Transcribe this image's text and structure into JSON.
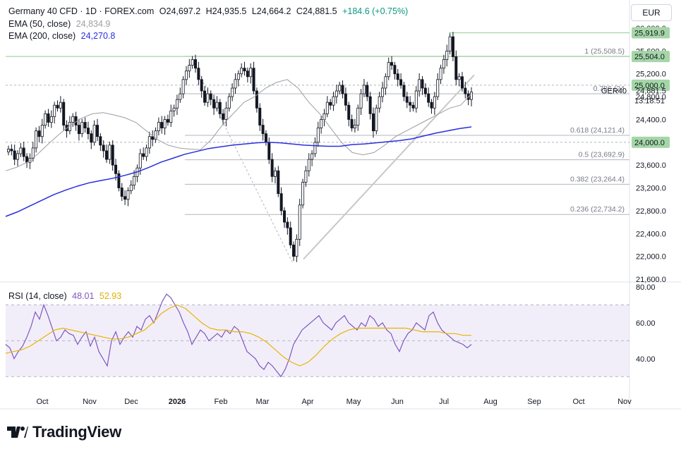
{
  "header": {
    "symbol": "Germany 40 CFD · 1D · FOREX.com",
    "open": "O24,697.2",
    "high": "H24,935.5",
    "low": "L24,664.2",
    "close": "C24,881.5",
    "change": "+184.6 (+0.75%)"
  },
  "indicators": {
    "ema50": {
      "label": "EMA (50, close)",
      "value": "24,834.9",
      "color": "#9e9e9e"
    },
    "ema200": {
      "label": "EMA (200, close)",
      "value": "24,270.8",
      "color": "#2a2ee0"
    },
    "rsi": {
      "label": "RSI (14, close)",
      "value": "48.01",
      "ma_value": "52.93",
      "color": "#7e57c2",
      "ma_color": "#f5c518"
    }
  },
  "currency": "EUR",
  "colors": {
    "up": "#131722",
    "down": "#131722",
    "fib": "#787b86",
    "resistance": "#a5d6a7"
  },
  "chart_data": [
    {
      "type": "candlestick",
      "title": "Germany 40 CFD · 1D · FOREX.com",
      "ylim": [
        21600,
        26000
      ],
      "y_ticks": [
        "26,000.0",
        "25,600.0",
        "25,200.0",
        "24,800.0",
        "24,400.0",
        "24,000.0",
        "23,600.0",
        "23,200.0",
        "22,800.0",
        "22,400.0",
        "22,000.0",
        "21,600.0"
      ],
      "x_tick_labels": [
        "Oct",
        "Nov",
        "Dec",
        "2026",
        "Feb",
        "Mar",
        "Apr",
        "May",
        "Jun",
        "Jul",
        "Aug",
        "Sep",
        "Oct",
        "Nov"
      ],
      "price_badges": [
        {
          "label": "25,919.9",
          "value": 25919.9,
          "color": "#a5d6a7"
        },
        {
          "label": "25,504.0",
          "value": 25504.0,
          "color": "#a5d6a7"
        },
        {
          "label": "25,000.0",
          "value": 25000.0,
          "color": "#a5d6a7"
        },
        {
          "label": "24,000.0",
          "value": 24000.0,
          "color": "#a5d6a7"
        }
      ],
      "current_price": {
        "label": "24,881.5",
        "symbol": "GER40",
        "countdown": "13:18:51"
      },
      "fib_levels": [
        {
          "label": "1 (25,508.5)",
          "value": 25508.5
        },
        {
          "label": "0.786 (24",
          "value": 24850
        },
        {
          "label": "0.618 (24,121.4)",
          "value": 24121.4
        },
        {
          "label": "0.5 (23,692.9)",
          "value": 23692.9
        },
        {
          "label": "0.382 (23,264.4)",
          "value": 23264.4
        },
        {
          "label": "0.236 (22,734.2)",
          "value": 22734.2
        }
      ],
      "candles_close": [
        23880,
        23850,
        23700,
        23800,
        23900,
        23750,
        23650,
        23720,
        23900,
        24200,
        24100,
        24300,
        24500,
        24350,
        24450,
        24650,
        24600,
        24700,
        24300,
        24200,
        24350,
        24450,
        24300,
        24150,
        24350,
        24250,
        24150,
        24000,
        24300,
        24100,
        23950,
        23850,
        23700,
        23950,
        23600,
        23450,
        23200,
        23050,
        23000,
        23150,
        23250,
        23400,
        23550,
        23800,
        23750,
        23900,
        24100,
        24050,
        24200,
        24350,
        24250,
        24400,
        24350,
        24550,
        24600,
        24750,
        24850,
        25100,
        25250,
        25350,
        25450,
        25300,
        25100,
        24900,
        24700,
        24850,
        24750,
        24600,
        24700,
        24500,
        24400,
        24600,
        24800,
        24950,
        25100,
        25200,
        25300,
        25250,
        25150,
        25300,
        24900,
        24600,
        24300,
        24150,
        24000,
        23700,
        23400,
        23500,
        23100,
        22800,
        22600,
        22500,
        22200,
        22000,
        22300,
        22900,
        23300,
        23500,
        23700,
        23800,
        24000,
        24250,
        24400,
        24500,
        24700,
        24650,
        24800,
        24900,
        25000,
        24850,
        24650,
        24400,
        24250,
        24300,
        24600,
        24850,
        25000,
        24800,
        24500,
        24200,
        24600,
        24800,
        24950,
        25150,
        25400,
        25350,
        25200,
        25100,
        25000,
        24800,
        24700,
        24650,
        24600,
        24900,
        25100,
        24950,
        24850,
        24700,
        24600,
        24800,
        25100,
        25300,
        25450,
        25600,
        25850,
        25500,
        25100,
        25150,
        24950,
        24850,
        24750,
        24880
      ],
      "series": [
        {
          "name": "EMA (50, close)",
          "values": [
            23500,
            23560,
            23650,
            23800,
            23980,
            24150,
            24300,
            24420,
            24500,
            24520,
            24480,
            24430,
            24350,
            24200,
            24050,
            23950,
            23900,
            23880,
            23870,
            24050,
            24300,
            24500,
            24700,
            24800,
            24950,
            25050,
            25100,
            24950,
            24700,
            24500,
            24250,
            24000,
            23820,
            23780,
            23820,
            23950,
            24100,
            24200,
            24300,
            24400,
            24500,
            24600,
            24650,
            24850
          ]
        },
        {
          "name": "EMA (200, close)",
          "values": [
            22700,
            22780,
            22880,
            22980,
            23080,
            23160,
            23230,
            23290,
            23330,
            23370,
            23420,
            23480,
            23560,
            23650,
            23720,
            23790,
            23840,
            23890,
            23920,
            23950,
            23970,
            23990,
            24000,
            23990,
            23970,
            23950,
            23940,
            23930,
            23930,
            23960,
            23970,
            23990,
            24010,
            24030,
            24060,
            24110,
            24160,
            24200,
            24240,
            24270
          ]
        }
      ]
    },
    {
      "type": "line",
      "title": "RSI (14, close)",
      "ylim": [
        25,
        80
      ],
      "y_ticks": [
        "80.00",
        "60.00",
        "40.00"
      ],
      "series": [
        {
          "name": "RSI (14, close)",
          "values": [
            48,
            46,
            40,
            44,
            47,
            52,
            58,
            66,
            62,
            70,
            64,
            57,
            50,
            52,
            56,
            54,
            53,
            48,
            52,
            55,
            47,
            52,
            44,
            40,
            36,
            50,
            55,
            48,
            52,
            55,
            52,
            58,
            56,
            62,
            64,
            60,
            66,
            72,
            76,
            74,
            70,
            66,
            60,
            55,
            48,
            52,
            56,
            54,
            50,
            52,
            54,
            52,
            56,
            54,
            58,
            56,
            50,
            44,
            42,
            40,
            36,
            34,
            38,
            36,
            33,
            30,
            34,
            40,
            48,
            52,
            56,
            58,
            60,
            62,
            64,
            60,
            58,
            56,
            60,
            62,
            64,
            60,
            58,
            56,
            60,
            58,
            64,
            62,
            58,
            60,
            56,
            54,
            48,
            44,
            50,
            54,
            56,
            60,
            58,
            56,
            64,
            66,
            60,
            56,
            54,
            52,
            50,
            49,
            48,
            46,
            48
          ]
        },
        {
          "name": "RSI MA",
          "values": [
            43,
            44,
            45,
            47,
            50,
            53,
            56,
            57,
            56,
            55,
            54,
            53,
            52,
            51,
            51,
            52,
            54,
            56,
            60,
            65,
            68,
            70,
            68,
            64,
            60,
            57,
            56,
            56,
            55,
            55,
            54,
            52,
            49,
            45,
            41,
            38,
            36,
            38,
            42,
            47,
            51,
            54,
            56,
            57,
            57,
            57,
            57,
            57,
            57,
            57,
            56,
            55,
            55,
            55,
            54,
            54,
            53,
            53
          ]
        }
      ]
    }
  ]
}
